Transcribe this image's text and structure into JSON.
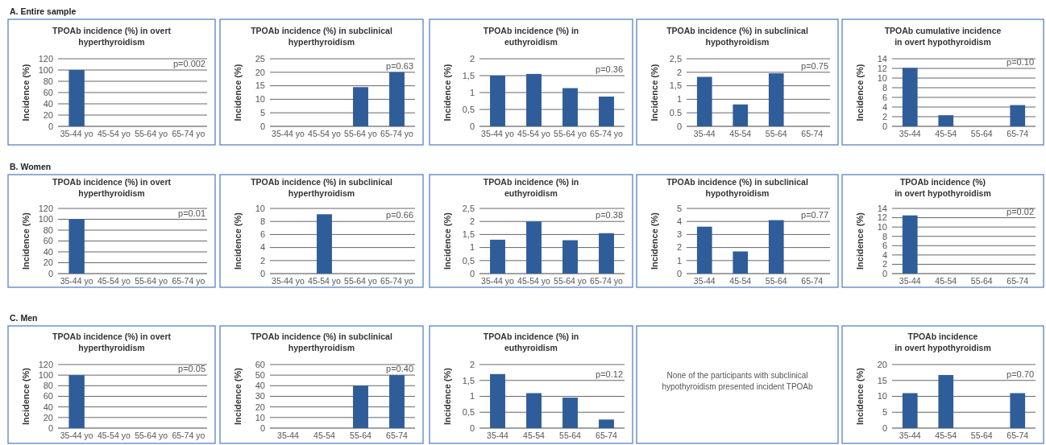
{
  "chart_data": [
    {
      "type": "bar",
      "title": "TPOAb incidence (%) in overt\nhyperthyroidism",
      "ylabel": "Incidence (%)",
      "categories": [
        "35-44 yo",
        "45-54 yo",
        "55-64 yo",
        "65-74 yo"
      ],
      "values": [
        100,
        0,
        0,
        0
      ],
      "color": "#2f5d99",
      "ylim": [
        0,
        120
      ],
      "yticks": [
        0,
        20,
        40,
        60,
        80,
        100,
        120
      ],
      "grid": "y",
      "annotations": [
        "A. Entire sample",
        "p=0.002"
      ]
    },
    {
      "type": "bar",
      "title": "TPOAb incidence (%) in subclinical\nhyperthyroidism",
      "ylabel": "Incidence (%)",
      "categories": [
        "35-44 yo",
        "45-54 yo",
        "55-64 yo",
        "65-74 yo"
      ],
      "values": [
        0,
        0,
        14.5,
        20
      ],
      "color": "#2f5d99",
      "ylim": [
        0,
        25
      ],
      "yticks": [
        0,
        5,
        10,
        15,
        20,
        25
      ],
      "grid": "y",
      "annotations": [
        "p=0.63"
      ]
    },
    {
      "type": "bar",
      "title": "TPOAb incidence (%) in\neuthyroidism",
      "ylabel": "Incidence (%)",
      "categories": [
        "35-44 yo",
        "45-54 yo",
        "55-64 yo",
        "65-74 yo"
      ],
      "values": [
        1.5,
        1.55,
        1.13,
        0.88
      ],
      "color": "#2f5d99",
      "ylim": [
        0,
        2
      ],
      "yticks": [
        0,
        {
          "value": 0.5,
          "label": "0,5"
        },
        1,
        {
          "value": 1.5,
          "label": "1,5"
        },
        2
      ],
      "grid": "y",
      "annotations": [
        "p=0.36"
      ]
    },
    {
      "type": "bar",
      "title": "TPOAb incidence (%) in subclinical\nhypothyroidism",
      "ylabel": "Incidence (%)",
      "categories": [
        "35-44",
        "45-54",
        "55-64",
        "65-74"
      ],
      "values": [
        1.83,
        0.81,
        1.96,
        0
      ],
      "color": "#2f5d99",
      "ylim": [
        0,
        2.5
      ],
      "yticks": [
        0,
        0.5,
        1,
        {
          "value": 1.5,
          "label": "1,5"
        },
        2,
        {
          "value": 2.5,
          "label": "2,5"
        }
      ],
      "grid": "y",
      "annotations": [
        "p=0.75"
      ]
    },
    {
      "type": "bar",
      "title": "TPOAb cumulative incidence\nin overt hypothyroidism",
      "ylabel": "Incidence (%)",
      "categories": [
        "35-44",
        "45-54",
        "55-64",
        "65-74"
      ],
      "values": [
        12.1,
        2.3,
        0,
        4.4
      ],
      "color": "#2f5d99",
      "ylim": [
        0,
        14
      ],
      "yticks": [
        0,
        2,
        4,
        6,
        8,
        10,
        12,
        14
      ],
      "grid": "y",
      "annotations": [
        "p=0.10"
      ]
    },
    {
      "type": "bar",
      "title": "TPOAb incidence (%) in overt\nhyperthyroidism",
      "ylabel": "Incidence (%)",
      "categories": [
        "35-44 yo",
        "45-54 yo",
        "55-64 yo",
        "65-74 yo"
      ],
      "values": [
        100,
        0,
        0,
        0
      ],
      "color": "#2f5d99",
      "ylim": [
        0,
        120
      ],
      "yticks": [
        0,
        20,
        40,
        60,
        80,
        100,
        120
      ],
      "grid": "y",
      "annotations": [
        "B. Women",
        "p=0.01"
      ]
    },
    {
      "type": "bar",
      "title": "TPOAb incidence (%) in subclinical\nhyperthyroidism",
      "ylabel": "Incidence (%)",
      "categories": [
        "35-44 yo",
        "45-54 yo",
        "55-64 yo",
        "65-74 yo"
      ],
      "values": [
        0,
        9.1,
        0,
        0
      ],
      "color": "#2f5d99",
      "ylim": [
        0,
        10
      ],
      "yticks": [
        0,
        2,
        4,
        6,
        8,
        10
      ],
      "grid": "y",
      "annotations": [
        "p=0.66"
      ]
    },
    {
      "type": "bar",
      "title": "TPOAb incidence (%) in\neuthyroidism",
      "ylabel": "Incidence (%)",
      "categories": [
        "35-44 yo",
        "45-54 yo",
        "55-64 yo",
        "65-74 yo"
      ],
      "values": [
        1.3,
        2,
        1.28,
        1.55
      ],
      "color": "#2f5d99",
      "ylim": [
        0,
        2.5
      ],
      "yticks": [
        0,
        {
          "value": 0.5,
          "label": "0,5"
        },
        1,
        {
          "value": 1.5,
          "label": "1,5"
        },
        2,
        {
          "value": 2.5,
          "label": "2,5"
        }
      ],
      "grid": "y",
      "annotations": [
        "p=0.38"
      ]
    },
    {
      "type": "bar",
      "title": "TPOAb incidence (%) in subclinical\nhypothyroidism",
      "ylabel": "Incidence (%)",
      "categories": [
        "35-44",
        "45-54",
        "55-64",
        "65-74"
      ],
      "values": [
        3.6,
        1.7,
        4.1,
        0
      ],
      "color": "#2f5d99",
      "ylim": [
        0,
        5
      ],
      "yticks": [
        0,
        1,
        2,
        3,
        4,
        5
      ],
      "grid": "y",
      "annotations": [
        "p=0.77"
      ]
    },
    {
      "type": "bar",
      "title": "TPOAb incidence (%)\nin overt hypothyroidism",
      "ylabel": "Incidence (%)",
      "categories": [
        "35-44",
        "45-54",
        "55-64",
        "65-74"
      ],
      "values": [
        12.5,
        0,
        0,
        0
      ],
      "color": "#2f5d99",
      "ylim": [
        0,
        14
      ],
      "yticks": [
        0,
        2,
        4,
        6,
        8,
        10,
        12,
        14
      ],
      "grid": "y",
      "annotations": [
        "p=0.02"
      ]
    },
    {
      "type": "bar",
      "title": "TPOAb incidence (%) in overt\nhyperthyroidism",
      "ylabel": "Incidence (%)",
      "categories": [
        "35-44 yo",
        "45-54 yo",
        "55-64 yo",
        "65-74 yo"
      ],
      "values": [
        100,
        0,
        0,
        0
      ],
      "color": "#2f5d99",
      "ylim": [
        0,
        120
      ],
      "yticks": [
        0,
        20,
        40,
        60,
        80,
        100,
        120
      ],
      "grid": "y",
      "annotations": [
        "C. Men",
        "p=0.05"
      ]
    },
    {
      "type": "bar",
      "title": "TPOAb incidence (%) in subclinical\nhyperthyroidism",
      "ylabel": "Incidence (%)",
      "categories": [
        "35-44",
        "45-54",
        "55-64",
        "65-74"
      ],
      "values": [
        0,
        0,
        40,
        50
      ],
      "color": "#2f5d99",
      "ylim": [
        0,
        60
      ],
      "yticks": [
        0,
        10,
        20,
        30,
        40,
        50,
        60
      ],
      "grid": "y",
      "annotations": [
        "p=0.40"
      ]
    },
    {
      "type": "bar",
      "title": "TPOAb incidence (%) in\neuthyroidism",
      "ylabel": "Incidence (%)",
      "categories": [
        "35-44",
        "45-54",
        "55-64",
        "65-74"
      ],
      "values": [
        1.7,
        1.1,
        0.96,
        0.27
      ],
      "color": "#2f5d99",
      "ylim": [
        0,
        2
      ],
      "yticks": [
        0,
        {
          "value": 0.5,
          "label": "0,5"
        },
        1,
        {
          "value": 1.5,
          "label": "1,5"
        },
        2
      ],
      "grid": "y",
      "annotations": [
        "p=0.12"
      ]
    },
    {
      "type": "other",
      "annotations": [
        "None of the participants with subclinical\nhypothyroidism presented incident TPOAb"
      ]
    },
    {
      "type": "bar",
      "title": "TPOAb incidence\nin overt hypothyroidism",
      "ylabel": "Incidence (%)",
      "categories": [
        "35-44",
        "45-54",
        "55-64",
        "65-74"
      ],
      "values": [
        11,
        16.7,
        0,
        11
      ],
      "color": "#2f5d99",
      "ylim": [
        0,
        20
      ],
      "yticks": [
        0,
        5,
        10,
        15,
        20
      ],
      "grid": "y",
      "annotations": [
        "p=0.70"
      ]
    }
  ]
}
